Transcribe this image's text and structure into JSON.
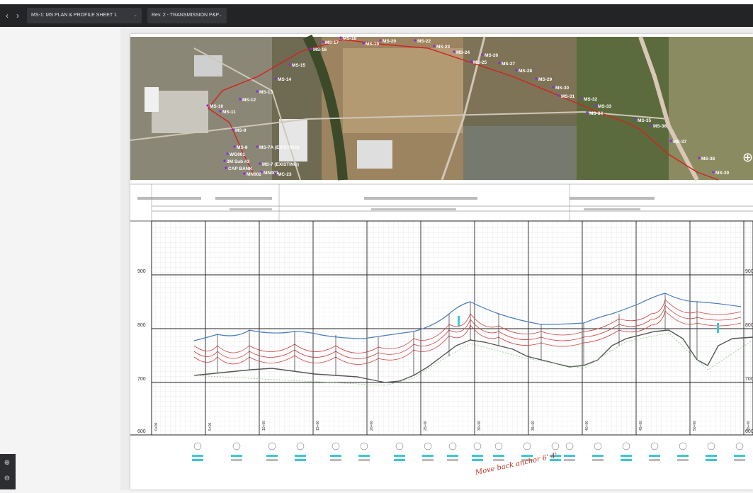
{
  "toolbar": {
    "back_glyph": "‹",
    "forward_glyph": "›",
    "sheet_selector": "MS-1: MS PLAN & PROFILE SHEET 1",
    "revision_selector": "Rev. 2 - TRANSMISSION P&P",
    "dropdown_glyph": "⌄"
  },
  "zoom": {
    "in_glyph": "⊕",
    "out_glyph": "⊖"
  },
  "plan": {
    "structure_labels": [
      "MS-8",
      "MS-9",
      "MS-10",
      "MS-11",
      "MS-12",
      "MS-13",
      "MS-14",
      "MS-15",
      "MS-16",
      "MS-17",
      "MS-18",
      "MS-19",
      "MS-20",
      "MS-22",
      "MS-23",
      "MS-24",
      "MS-25",
      "MS-26",
      "MS-27",
      "MS-28",
      "MS-29",
      "MS-30",
      "MS-31",
      "MS-32",
      "MS-33",
      "MS-34",
      "MS-35",
      "MS-36",
      "MS-37",
      "MS-38",
      "MS-39",
      "MS-7A (EXISTING)",
      "MS-7 (EXISTING)",
      "WG001",
      "3M Sub #3",
      "CAP BANK",
      "MN001",
      "MN002",
      "MC-23"
    ]
  },
  "profile": {
    "elevation_labels": [
      "900",
      "800",
      "700",
      "600"
    ],
    "station_labels": [
      "0+00",
      "5+00",
      "10+00",
      "15+00",
      "20+00",
      "25+00",
      "30+00",
      "35+00",
      "40+00",
      "45+00",
      "50+00",
      "55+00"
    ]
  },
  "markup": {
    "handwritten_note": "Move back anchor 6' 4'"
  },
  "colors": {
    "toolbar": "#232426",
    "conductor": "#d04040",
    "ground": "#555555",
    "wire_blue": "#4a7fc1",
    "highlight": "#3ec7d6",
    "route": "#d62020"
  }
}
